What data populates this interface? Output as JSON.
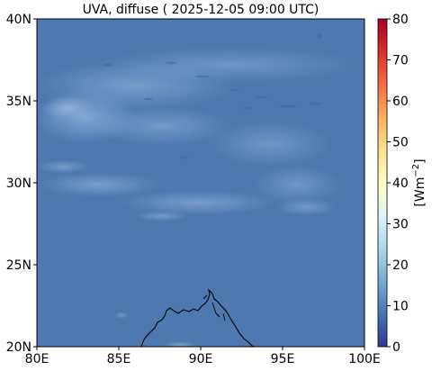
{
  "title": "UVA, diffuse ( 2025-12-05 09:00 UTC)",
  "map": {
    "lon_range": [
      80,
      100
    ],
    "lat_range": [
      20,
      40
    ],
    "x_ticks": [
      {
        "value": 80,
        "label": "80E"
      },
      {
        "value": 85,
        "label": "85E"
      },
      {
        "value": 90,
        "label": "90E"
      },
      {
        "value": 95,
        "label": "95E"
      },
      {
        "value": 100,
        "label": "100E"
      }
    ],
    "y_ticks": [
      {
        "value": 20,
        "label": "20N"
      },
      {
        "value": 25,
        "label": "25N"
      },
      {
        "value": 30,
        "label": "30N"
      },
      {
        "value": 35,
        "label": "35N"
      },
      {
        "value": 40,
        "label": "40N"
      }
    ],
    "base_color": "#4d78b0",
    "coastline_color": "#000000"
  },
  "colorbar": {
    "label_main": "[Wm",
    "label_sup": "−2",
    "label_end": "]",
    "range": [
      0,
      80
    ],
    "ticks": [
      {
        "value": 0,
        "label": "0"
      },
      {
        "value": 10,
        "label": "10"
      },
      {
        "value": 20,
        "label": "20"
      },
      {
        "value": 30,
        "label": "30"
      },
      {
        "value": 40,
        "label": "40"
      },
      {
        "value": 50,
        "label": "50"
      },
      {
        "value": 60,
        "label": "60"
      },
      {
        "value": 70,
        "label": "70"
      },
      {
        "value": 80,
        "label": "80"
      }
    ],
    "colormap": "RdYlBu_r",
    "stops": [
      {
        "value": 0,
        "color": "#313695"
      },
      {
        "value": 8,
        "color": "#4575b4"
      },
      {
        "value": 16,
        "color": "#74add1"
      },
      {
        "value": 24,
        "color": "#abd9e9"
      },
      {
        "value": 32,
        "color": "#e0f3f8"
      },
      {
        "value": 40,
        "color": "#ffffbf"
      },
      {
        "value": 48,
        "color": "#fee090"
      },
      {
        "value": 56,
        "color": "#fdae61"
      },
      {
        "value": 64,
        "color": "#f46d43"
      },
      {
        "value": 72,
        "color": "#d73027"
      },
      {
        "value": 80,
        "color": "#a50026"
      }
    ]
  }
}
